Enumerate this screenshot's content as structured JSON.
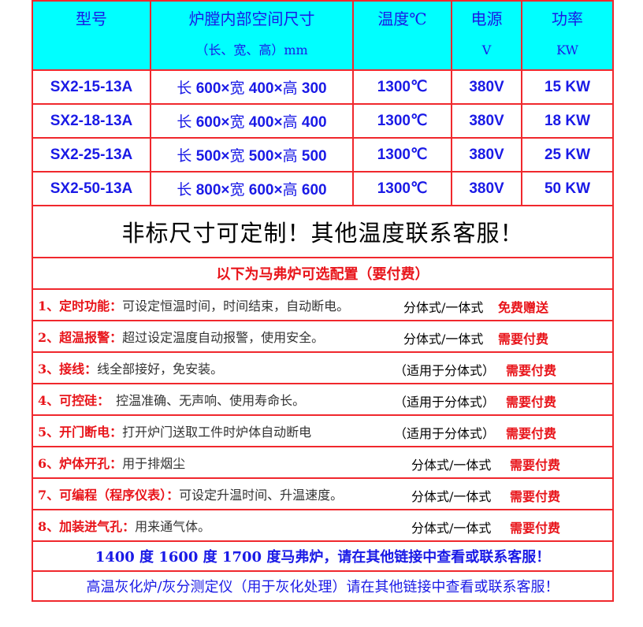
{
  "header": {
    "model": "型号",
    "dims": "炉膛内部空间尺寸",
    "dims_unit": "（长、宽、高）mm",
    "temp": "温度℃",
    "power_src": "电源",
    "power_src_unit": "V",
    "power": "功率",
    "power_unit": "KW"
  },
  "rows": [
    {
      "model": "SX2-15-13A",
      "l": "长",
      "lv": "600×",
      "w": "宽",
      "wv": "400×",
      "h": "高",
      "hv": "300",
      "temp": "1300℃",
      "volt": "380V",
      "power": "15 KW"
    },
    {
      "model": "SX2-18-13A",
      "l": "长",
      "lv": "600×",
      "w": "宽",
      "wv": "400×",
      "h": "高",
      "hv": "400",
      "temp": "1300℃",
      "volt": "380V",
      "power": "18 KW"
    },
    {
      "model": "SX2-25-13A",
      "l": "长",
      "lv": "500×",
      "w": "宽",
      "wv": "500×",
      "h": "高",
      "hv": "500",
      "temp": "1300℃",
      "volt": "380V",
      "power": "25 KW"
    },
    {
      "model": "SX2-50-13A",
      "l": "长",
      "lv": "800×",
      "w": "宽",
      "wv": "600×",
      "h": "高",
      "hv": "600",
      "temp": "1300℃",
      "volt": "380V",
      "power": "50 KW"
    }
  ],
  "custom_note": "非标尺寸可定制！其他温度联系客服！",
  "options_title": "以下为马弗炉可选配置（要付费）",
  "options": [
    {
      "label": "1、定时功能：",
      "desc": "可设定恒温时间，时间结束，自动断电。",
      "scope": "分体式/一体式",
      "fee": "免费赠送"
    },
    {
      "label": "2、超温报警：",
      "desc": "超过设定温度自动报警，使用安全。",
      "scope": "分体式/一体式",
      "fee": "需要付费"
    },
    {
      "label": "3、接线：",
      "desc": "线全部接好，免安装。",
      "scope": "（适用于分体式）",
      "fee": "需要付费"
    },
    {
      "label": "4、可控硅：",
      "desc": "　控温准确、无声响、使用寿命长。",
      "scope": "（适用于分体式）",
      "fee": "需要付费"
    },
    {
      "label": "5、开门断电：",
      "desc": "打开炉门送取工件时炉体自动断电",
      "scope": "（适用于分体式）",
      "fee": "需要付费"
    },
    {
      "label": "6、炉体开孔：",
      "desc": "用于排烟尘",
      "scope": "分体式/一体式",
      "fee": "需要付费"
    },
    {
      "label": "7、可编程（程序仪表）：",
      "desc": "可设定升温时间、升温速度。",
      "scope": "分体式/一体式",
      "fee": "需要付费"
    },
    {
      "label": "8、加装进气孔：",
      "desc": "用来通气体。",
      "scope": "分体式/一体式",
      "fee": "需要付费"
    }
  ],
  "footer1": "1400 度 1600 度 1700 度马弗炉，请在其他链接中查看或联系客服！",
  "footer2": "高温灰化炉/灰分测定仪（用于灰化处理）请在其他链接中查看或联系客服！",
  "colors": {
    "border": "#f0282d",
    "header_bg": "#00ffff",
    "text_blue": "#1a1ae6",
    "text_red": "#e8141a"
  }
}
